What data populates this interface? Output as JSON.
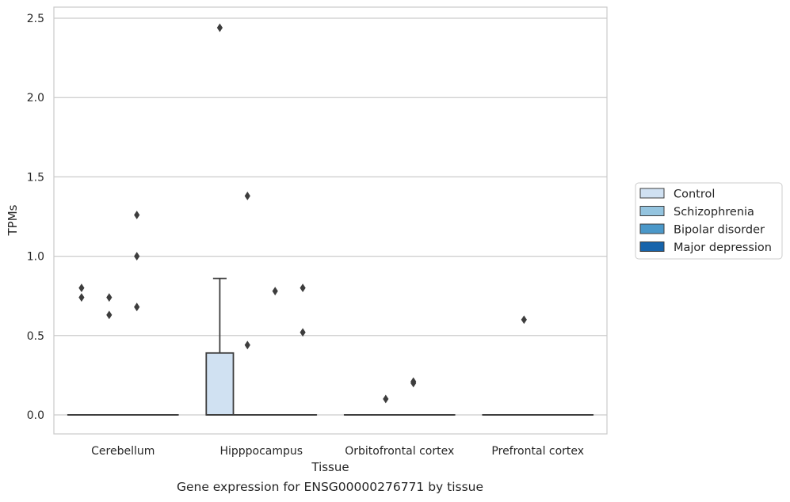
{
  "caption": "Gene expression for ENSG00000276771 by tissue",
  "chart_data": {
    "type": "box",
    "xlabel": "Tissue",
    "ylabel": "TPMs",
    "ylim": [
      -0.12,
      2.57
    ],
    "yticks": [
      "0.0",
      "0.5",
      "1.0",
      "1.5",
      "2.0",
      "2.5"
    ],
    "ytick_values": [
      0,
      0.5,
      1.0,
      1.5,
      2.0,
      2.5
    ],
    "grid": true,
    "legend_position": "right",
    "categories": [
      "Cerebellum",
      "Hipppocampus",
      "Orbitofrontal cortex",
      "Prefrontal cortex"
    ],
    "series": [
      {
        "name": "Control",
        "color": "#d0e1f2",
        "boxes": [
          {
            "q1": 0,
            "median": 0,
            "q3": 0,
            "whisker_low": 0,
            "whisker_high": 0,
            "outliers": [
              0.8,
              0.74
            ]
          },
          {
            "q1": 0,
            "median": 0,
            "q3": 0.39,
            "whisker_low": 0,
            "whisker_high": 0.86,
            "outliers": [
              2.44
            ]
          },
          {
            "q1": 0,
            "median": 0,
            "q3": 0,
            "whisker_low": 0,
            "whisker_high": 0,
            "outliers": []
          },
          {
            "q1": 0,
            "median": 0,
            "q3": 0,
            "whisker_low": 0,
            "whisker_high": 0,
            "outliers": []
          }
        ]
      },
      {
        "name": "Schizophrenia",
        "color": "#94c4df",
        "boxes": [
          {
            "q1": 0,
            "median": 0,
            "q3": 0,
            "whisker_low": 0,
            "whisker_high": 0,
            "outliers": [
              0.74,
              0.63
            ]
          },
          {
            "q1": 0,
            "median": 0,
            "q3": 0,
            "whisker_low": 0,
            "whisker_high": 0,
            "outliers": [
              1.38,
              0.44
            ]
          },
          {
            "q1": 0,
            "median": 0,
            "q3": 0,
            "whisker_low": 0,
            "whisker_high": 0,
            "outliers": [
              0.1
            ]
          },
          {
            "q1": 0,
            "median": 0,
            "q3": 0,
            "whisker_low": 0,
            "whisker_high": 0,
            "outliers": [
              0.6
            ]
          }
        ]
      },
      {
        "name": "Bipolar disorder",
        "color": "#4b98c9",
        "boxes": [
          {
            "q1": 0,
            "median": 0,
            "q3": 0,
            "whisker_low": 0,
            "whisker_high": 0,
            "outliers": [
              1.26,
              1.0,
              0.68
            ]
          },
          {
            "q1": 0,
            "median": 0,
            "q3": 0,
            "whisker_low": 0,
            "whisker_high": 0,
            "outliers": [
              0.78
            ]
          },
          {
            "q1": 0,
            "median": 0,
            "q3": 0,
            "whisker_low": 0,
            "whisker_high": 0,
            "outliers": [
              0.21,
              0.2
            ]
          },
          {
            "q1": 0,
            "median": 0,
            "q3": 0,
            "whisker_low": 0,
            "whisker_high": 0,
            "outliers": []
          }
        ]
      },
      {
        "name": "Major depression",
        "color": "#1764ab",
        "boxes": [
          {
            "q1": 0,
            "median": 0,
            "q3": 0,
            "whisker_low": 0,
            "whisker_high": 0,
            "outliers": []
          },
          {
            "q1": 0,
            "median": 0,
            "q3": 0,
            "whisker_low": 0,
            "whisker_high": 0,
            "outliers": [
              0.8,
              0.52
            ]
          },
          {
            "q1": 0,
            "median": 0,
            "q3": 0,
            "whisker_low": 0,
            "whisker_high": 0,
            "outliers": []
          },
          {
            "q1": 0,
            "median": 0,
            "q3": 0,
            "whisker_low": 0,
            "whisker_high": 0,
            "outliers": []
          }
        ]
      }
    ]
  }
}
